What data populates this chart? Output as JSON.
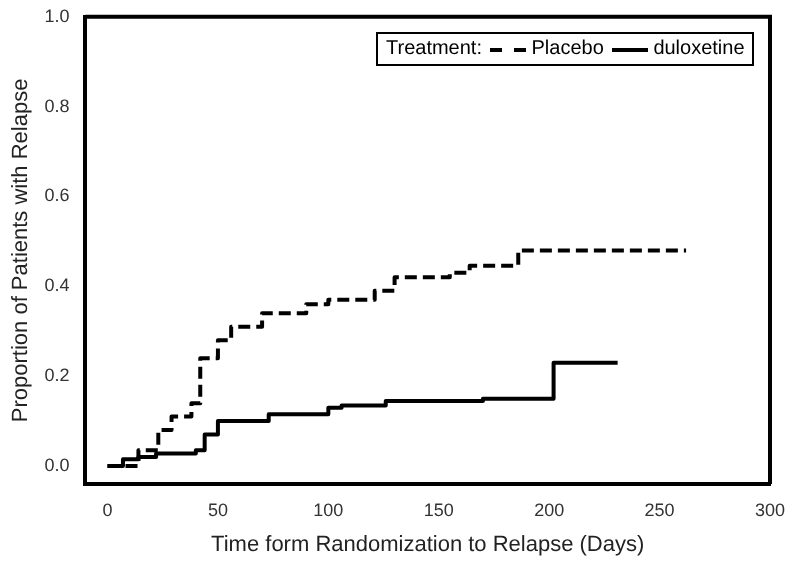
{
  "chart_data": {
    "type": "step",
    "xlabel": "Time form Randomization to Relapse (Days)",
    "ylabel": "Proportion of Patients with Relapse",
    "legend_title": "Treatment:",
    "legend": "top right",
    "grid": false,
    "marker": "none",
    "xlim": [
      -10,
      300
    ],
    "xticks": [
      0,
      50,
      100,
      150,
      200,
      250,
      300
    ],
    "ylim": [
      -0.04,
      1.0
    ],
    "yticks": [
      {
        "value": 0,
        "label": "0.0"
      },
      {
        "value": 0.2,
        "label": "0.2"
      },
      {
        "value": 0.4,
        "label": "0.4"
      },
      {
        "value": 0.6,
        "label": "0.6"
      },
      {
        "value": 0.8,
        "label": "0.8"
      },
      {
        "value": 1,
        "label": "1.0"
      }
    ],
    "series": [
      {
        "name": "Placebo",
        "color": "#000000",
        "line_style": "dashed",
        "x": [
          0,
          14,
          23,
          29,
          38,
          42,
          50,
          56,
          70,
          90,
          100,
          121,
          130,
          155,
          164,
          186,
          262
        ],
        "values": [
          0,
          0.035,
          0.08,
          0.11,
          0.14,
          0.24,
          0.28,
          0.31,
          0.34,
          0.36,
          0.37,
          0.39,
          0.42,
          0.43,
          0.446,
          0.48,
          0.48
        ]
      },
      {
        "name": "duloxetine",
        "color": "#000000",
        "line_style": "solid",
        "x": [
          0,
          7,
          14,
          22,
          40,
          44,
          50,
          73,
          100,
          106,
          126,
          170,
          202,
          231
        ],
        "values": [
          0,
          0.015,
          0.02,
          0.028,
          0.035,
          0.07,
          0.1,
          0.115,
          0.13,
          0.135,
          0.145,
          0.15,
          0.23,
          0.23
        ]
      }
    ]
  }
}
